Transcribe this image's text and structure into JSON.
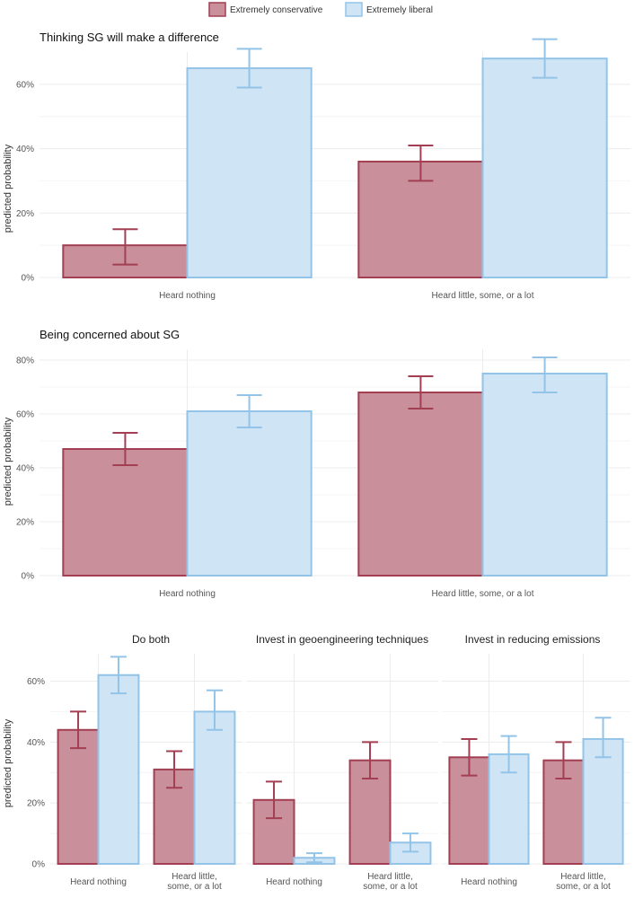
{
  "legend": {
    "items": [
      {
        "key": "cons",
        "label": "Extremely conservative",
        "fill": "#c98f9b",
        "stroke": "#a23f52"
      },
      {
        "key": "lib",
        "label": "Extremely liberal",
        "fill": "#cfe4f5",
        "stroke": "#93c4e8"
      }
    ]
  },
  "chart_data": [
    {
      "type": "bar",
      "title": "Thinking SG will make a difference",
      "ylabel": "predicted probability",
      "ylim": [
        0,
        70
      ],
      "yticks": [
        "0%",
        "20%",
        "40%",
        "60%"
      ],
      "yticks_values": [
        0,
        20,
        40,
        60
      ],
      "categories": [
        "Heard nothing",
        "Heard little, some, or a lot"
      ],
      "series": [
        {
          "name": "Extremely conservative",
          "values": [
            10,
            36
          ],
          "lower": [
            4,
            30
          ],
          "upper": [
            15,
            41
          ]
        },
        {
          "name": "Extremely liberal",
          "values": [
            65,
            68
          ],
          "lower": [
            59,
            62
          ],
          "upper": [
            71,
            74
          ]
        }
      ]
    },
    {
      "type": "bar",
      "title": "Being concerned about SG",
      "ylabel": "predicted probability",
      "ylim": [
        0,
        84
      ],
      "yticks": [
        "0%",
        "20%",
        "40%",
        "60%",
        "80%"
      ],
      "yticks_values": [
        0,
        20,
        40,
        60,
        80
      ],
      "categories": [
        "Heard nothing",
        "Heard little, some, or a lot"
      ],
      "series": [
        {
          "name": "Extremely conservative",
          "values": [
            47,
            68
          ],
          "lower": [
            41,
            62
          ],
          "upper": [
            53,
            74
          ]
        },
        {
          "name": "Extremely liberal",
          "values": [
            61,
            75
          ],
          "lower": [
            55,
            68
          ],
          "upper": [
            67,
            81
          ]
        }
      ]
    },
    {
      "type": "bar",
      "ylabel": "predicted probability",
      "ylim": [
        0,
        69
      ],
      "yticks": [
        "0%",
        "20%",
        "40%",
        "60%"
      ],
      "yticks_values": [
        0,
        20,
        40,
        60
      ],
      "facets": [
        {
          "title": "Do both",
          "categories": [
            "Heard nothing",
            "Heard little, some, or a lot"
          ],
          "series": [
            {
              "name": "Extremely conservative",
              "values": [
                44,
                31
              ],
              "lower": [
                38,
                25
              ],
              "upper": [
                50,
                37
              ]
            },
            {
              "name": "Extremely liberal",
              "values": [
                62,
                50
              ],
              "lower": [
                56,
                44
              ],
              "upper": [
                68,
                57
              ]
            }
          ]
        },
        {
          "title": "Invest in geoengineering techniques",
          "categories": [
            "Heard nothing",
            "Heard little, some, or a lot"
          ],
          "series": [
            {
              "name": "Extremely conservative",
              "values": [
                21,
                34
              ],
              "lower": [
                15,
                28
              ],
              "upper": [
                27,
                40
              ]
            },
            {
              "name": "Extremely liberal",
              "values": [
                2,
                7
              ],
              "lower": [
                0.5,
                4
              ],
              "upper": [
                3.5,
                10
              ]
            }
          ]
        },
        {
          "title": "Invest in reducing emissions",
          "categories": [
            "Heard nothing",
            "Heard little, some, or a lot"
          ],
          "series": [
            {
              "name": "Extremely conservative",
              "values": [
                35,
                34
              ],
              "lower": [
                29,
                28
              ],
              "upper": [
                41,
                40
              ]
            },
            {
              "name": "Extremely liberal",
              "values": [
                36,
                41
              ],
              "lower": [
                30,
                35
              ],
              "upper": [
                42,
                48
              ]
            }
          ]
        }
      ]
    }
  ]
}
